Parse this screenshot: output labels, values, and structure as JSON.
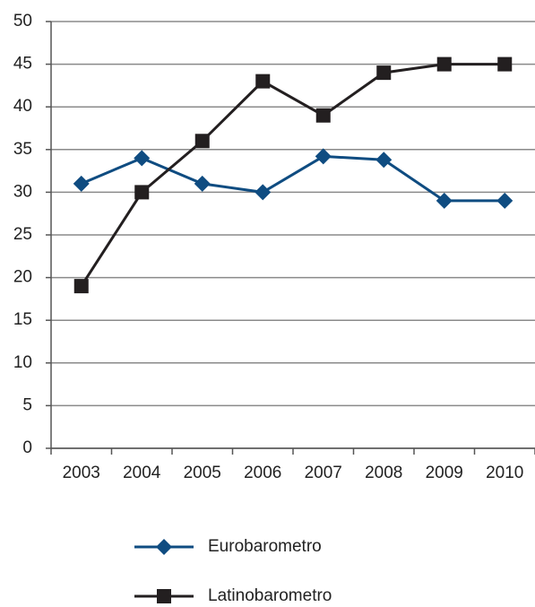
{
  "chart_data": {
    "type": "line",
    "categories": [
      "2003",
      "2004",
      "2005",
      "2006",
      "2007",
      "2008",
      "2009",
      "2010"
    ],
    "series": [
      {
        "name": "Eurobarometro",
        "color": "#0f4c81",
        "marker": "diamond",
        "values": [
          31,
          34,
          31,
          30,
          34.2,
          33.8,
          29,
          29
        ]
      },
      {
        "name": "Latinobarometro",
        "color": "#231f20",
        "marker": "square",
        "values": [
          19,
          30,
          36,
          43,
          39,
          44,
          45,
          45
        ]
      }
    ],
    "ylim": [
      0,
      50
    ],
    "yticks": [
      0,
      5,
      10,
      15,
      20,
      25,
      30,
      35,
      40,
      45,
      50
    ],
    "grid": true,
    "legend": "bottom"
  }
}
